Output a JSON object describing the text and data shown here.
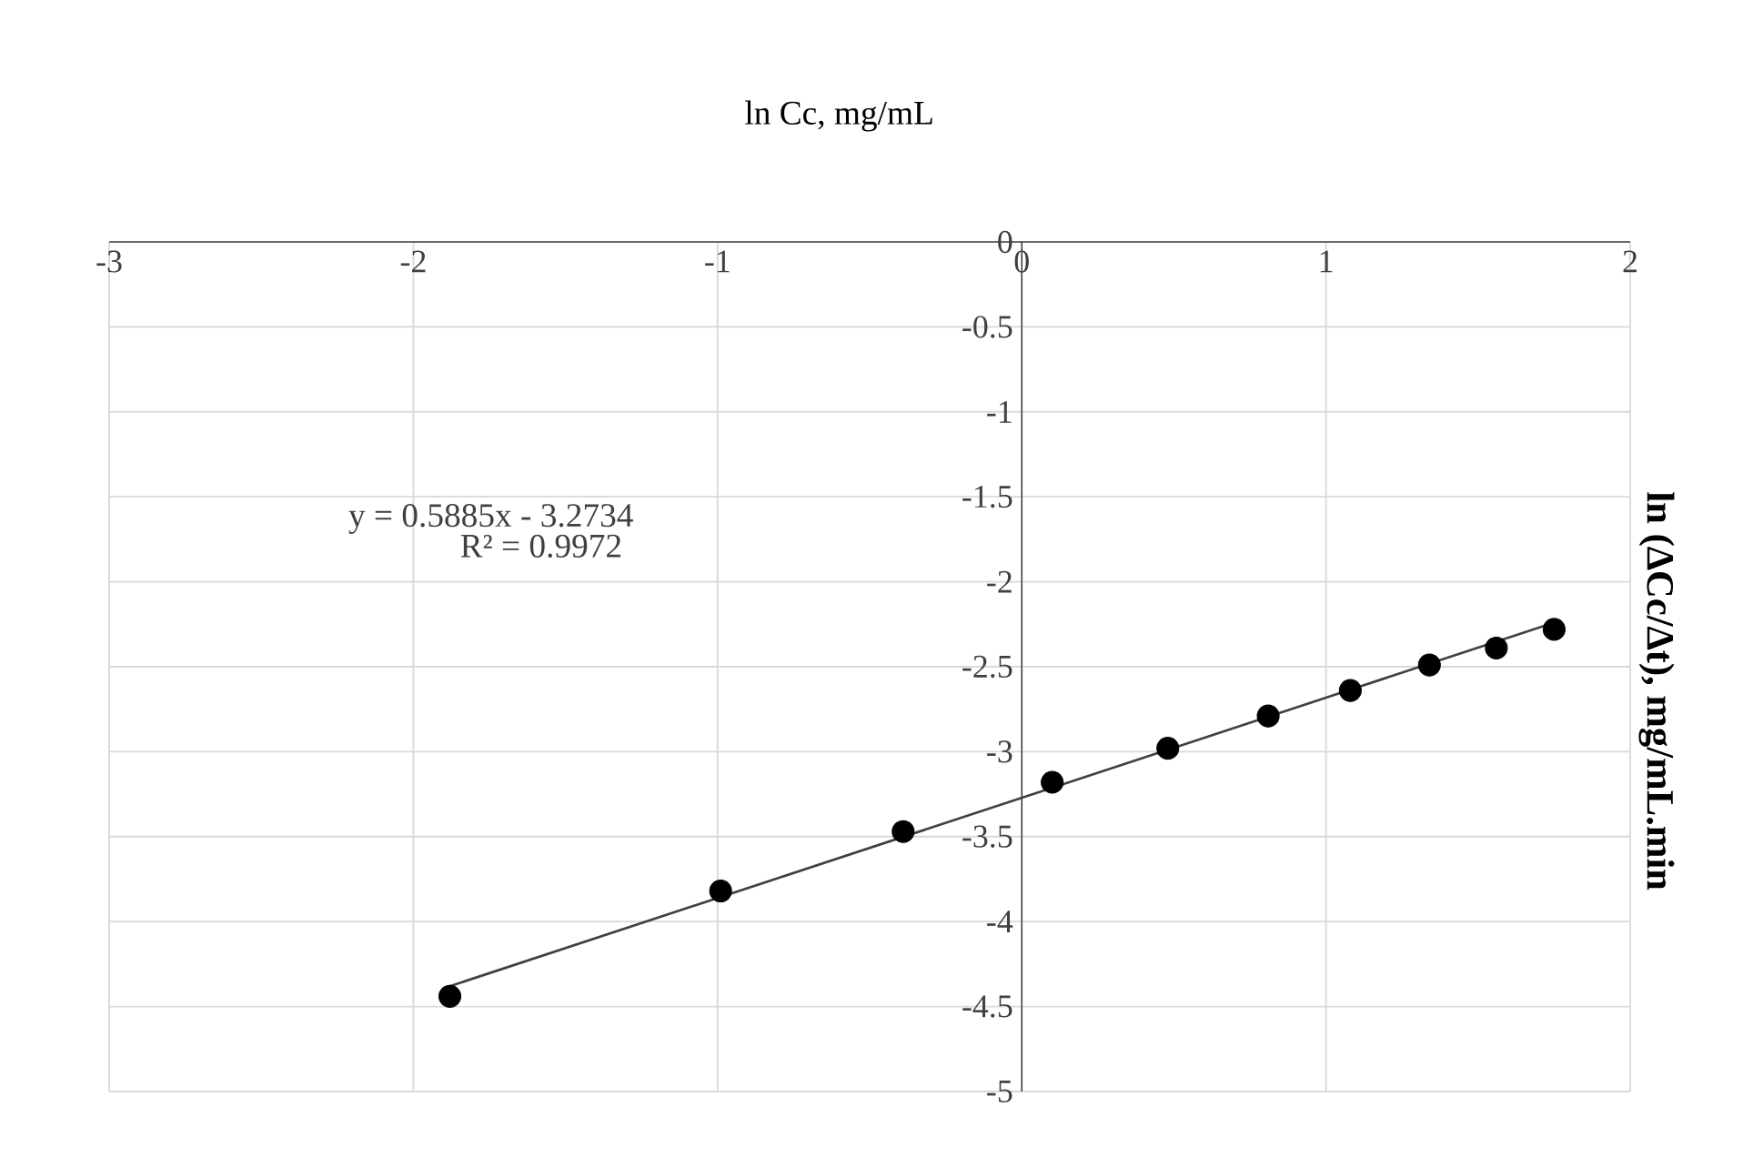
{
  "chart_data": {
    "type": "scatter",
    "xlabel": "ln Cc, mg/mL",
    "ylabel": "ln (∆Cc/∆t), mg/mL.min",
    "annotations": [
      "y = 0.5885x - 3.2734",
      "R² = 0.9972"
    ],
    "series": [
      {
        "color": "#000000",
        "marker": "circle",
        "x": [
          -1.88,
          -0.99,
          -0.39,
          0.1,
          0.48,
          0.81,
          1.08,
          1.34,
          1.56,
          1.75
        ],
        "values": [
          -4.44,
          -3.82,
          -3.47,
          -3.18,
          -2.98,
          -2.79,
          -2.64,
          -2.49,
          -2.39,
          -2.28
        ]
      },
      {
        "type": "line",
        "marker": "none",
        "color": "#404040",
        "x": [
          -1.88,
          1.75
        ],
        "values": [
          -4.38,
          -2.24
        ]
      }
    ],
    "xlim": [
      -3,
      2
    ],
    "xticks": [
      -3,
      -2,
      -1,
      0,
      1,
      2
    ],
    "ylim": [
      -5,
      0
    ],
    "yticks": [
      0,
      -0.5,
      -1,
      -1.5,
      -2,
      -2.5,
      -3,
      -3.5,
      -4,
      -4.5,
      -5
    ],
    "grid": true
  }
}
